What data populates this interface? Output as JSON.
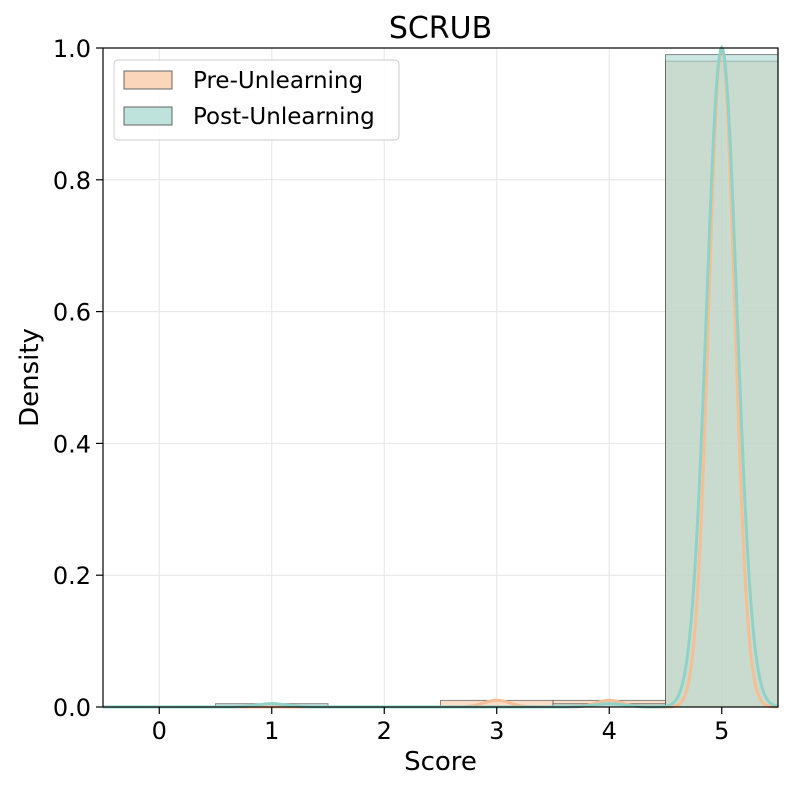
{
  "chart_data": {
    "type": "bar",
    "title": "SCRUB",
    "xlabel": "Score",
    "ylabel": "Density",
    "xlim": [
      -0.5,
      5.5
    ],
    "ylim": [
      0,
      1.0
    ],
    "xticks": [
      0,
      1,
      2,
      3,
      4,
      5
    ],
    "xtick_labels": [
      "0",
      "1",
      "2",
      "3",
      "4",
      "5"
    ],
    "yticks": [
      0.0,
      0.2,
      0.4,
      0.6,
      0.8,
      1.0
    ],
    "ytick_labels": [
      "0.0",
      "0.2",
      "0.4",
      "0.6",
      "0.8",
      "1.0"
    ],
    "grid": true,
    "legend_position": "top-left",
    "categories": [
      0,
      1,
      2,
      3,
      4,
      5
    ],
    "series": [
      {
        "name": "Pre-Unlearning",
        "values": [
          0.0,
          0.0,
          0.0,
          0.01,
          0.01,
          0.98
        ],
        "color": "#f9c8a4",
        "line_color": "#f5be94"
      },
      {
        "name": "Post-Unlearning",
        "values": [
          0.0,
          0.005,
          0.0,
          0.0,
          0.005,
          0.99
        ],
        "color": "#a8d9d2",
        "line_color": "#8fd3c8"
      }
    ],
    "kde": true
  }
}
